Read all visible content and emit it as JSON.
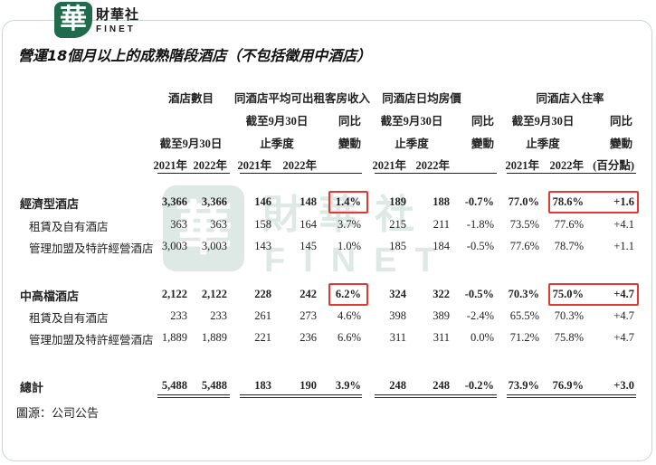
{
  "logo": {
    "glyph": "華",
    "name_cn": "財華社",
    "name_en": "FINET",
    "watermark_cn": "財華社",
    "watermark_en": "FINET"
  },
  "title": "營運18個月以上的成熟階段酒店（不包括徵用中酒店）",
  "headers": {
    "groups": [
      "酒店數目",
      "同酒店平均可出租客房收入",
      "同酒店日均房價",
      "同酒店入住率"
    ],
    "period_sub": "截至9月30日",
    "period_sub2": "止季度",
    "yoy_1": "同比",
    "yoy_2": "變動",
    "yoy_pct_note": "(百分點)",
    "years": [
      "2021年",
      "2022年"
    ]
  },
  "rows": [
    {
      "label": "經濟型酒店",
      "bold": true,
      "values": [
        "3,366",
        "3,366",
        "146",
        "148",
        "1.4%",
        "189",
        "188",
        "-0.7%",
        "77.0%",
        "78.6%",
        "+1.6"
      ]
    },
    {
      "label": "租賃及自有酒店",
      "bold": false,
      "values": [
        "363",
        "363",
        "158",
        "164",
        "3.7%",
        "215",
        "211",
        "-1.8%",
        "73.5%",
        "77.6%",
        "+4.1"
      ]
    },
    {
      "label": "管理加盟及特許經營酒店",
      "bold": false,
      "values": [
        "3,003",
        "3,003",
        "143",
        "145",
        "1.0%",
        "185",
        "184",
        "-0.5%",
        "77.6%",
        "78.7%",
        "+1.1"
      ]
    },
    {
      "label": "中高檔酒店",
      "bold": true,
      "values": [
        "2,122",
        "2,122",
        "228",
        "242",
        "6.2%",
        "324",
        "322",
        "-0.5%",
        "70.3%",
        "75.0%",
        "+4.7"
      ]
    },
    {
      "label": "租賃及自有酒店",
      "bold": false,
      "values": [
        "233",
        "233",
        "261",
        "273",
        "4.6%",
        "398",
        "389",
        "-2.4%",
        "65.5%",
        "70.3%",
        "+4.7"
      ]
    },
    {
      "label": "管理加盟及特許經營酒店",
      "bold": false,
      "values": [
        "1,889",
        "1,889",
        "221",
        "236",
        "6.6%",
        "311",
        "311",
        "0.0%",
        "71.2%",
        "75.8%",
        "+4.7"
      ]
    },
    {
      "label": "總計",
      "bold": true,
      "values": [
        "5,488",
        "5,488",
        "183",
        "190",
        "3.9%",
        "248",
        "248",
        "-0.2%",
        "73.9%",
        "76.9%",
        "+3.0"
      ]
    }
  ],
  "highlight_color": "#e23a32",
  "source": "圖源：公司公告"
}
